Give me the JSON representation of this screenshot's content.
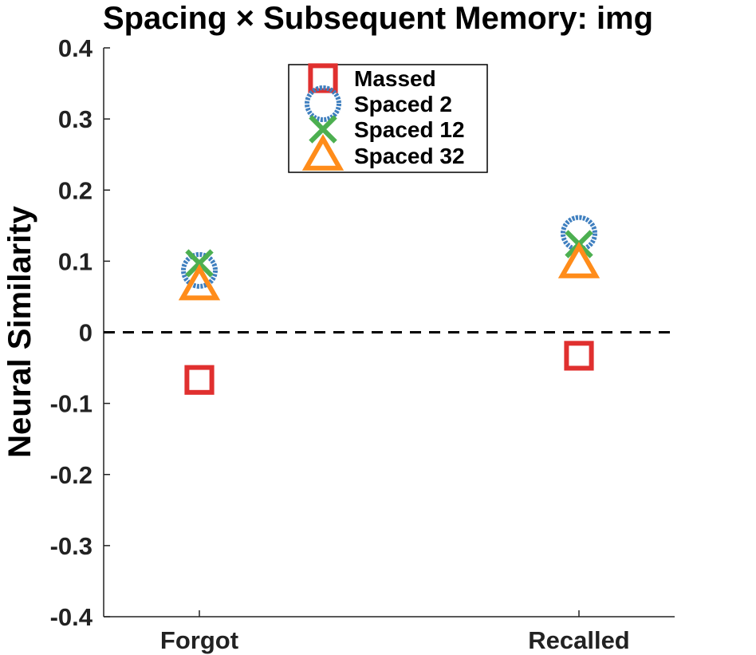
{
  "chart_data": {
    "type": "scatter",
    "title": "Spacing × Subsequent Memory: img",
    "ylabel": "Neural Similarity",
    "xlabel": "",
    "categories": [
      "Forgot",
      "Recalled"
    ],
    "ylim": [
      -0.4,
      0.4
    ],
    "yticks": [
      "-0.4",
      "-0.3",
      "-0.2",
      "-0.1",
      "0",
      "0.1",
      "0.2",
      "0.3",
      "0.4"
    ],
    "reference_line": {
      "y": 0,
      "style": "dashed",
      "color": "#000000"
    },
    "legend_position": "top-center",
    "grid": false,
    "series": [
      {
        "name": "Massed",
        "marker": "square",
        "color": "#e0302f",
        "values": [
          -0.067,
          -0.033
        ]
      },
      {
        "name": "Spaced 2",
        "marker": "circle",
        "color": "#3f7fbf",
        "values": [
          0.087,
          0.139
        ]
      },
      {
        "name": "Spaced 12",
        "marker": "x",
        "color": "#4caf50",
        "values": [
          0.097,
          0.124
        ]
      },
      {
        "name": "Spaced 32",
        "marker": "triangle",
        "color": "#ff8c1a",
        "values": [
          0.066,
          0.097
        ]
      }
    ]
  }
}
